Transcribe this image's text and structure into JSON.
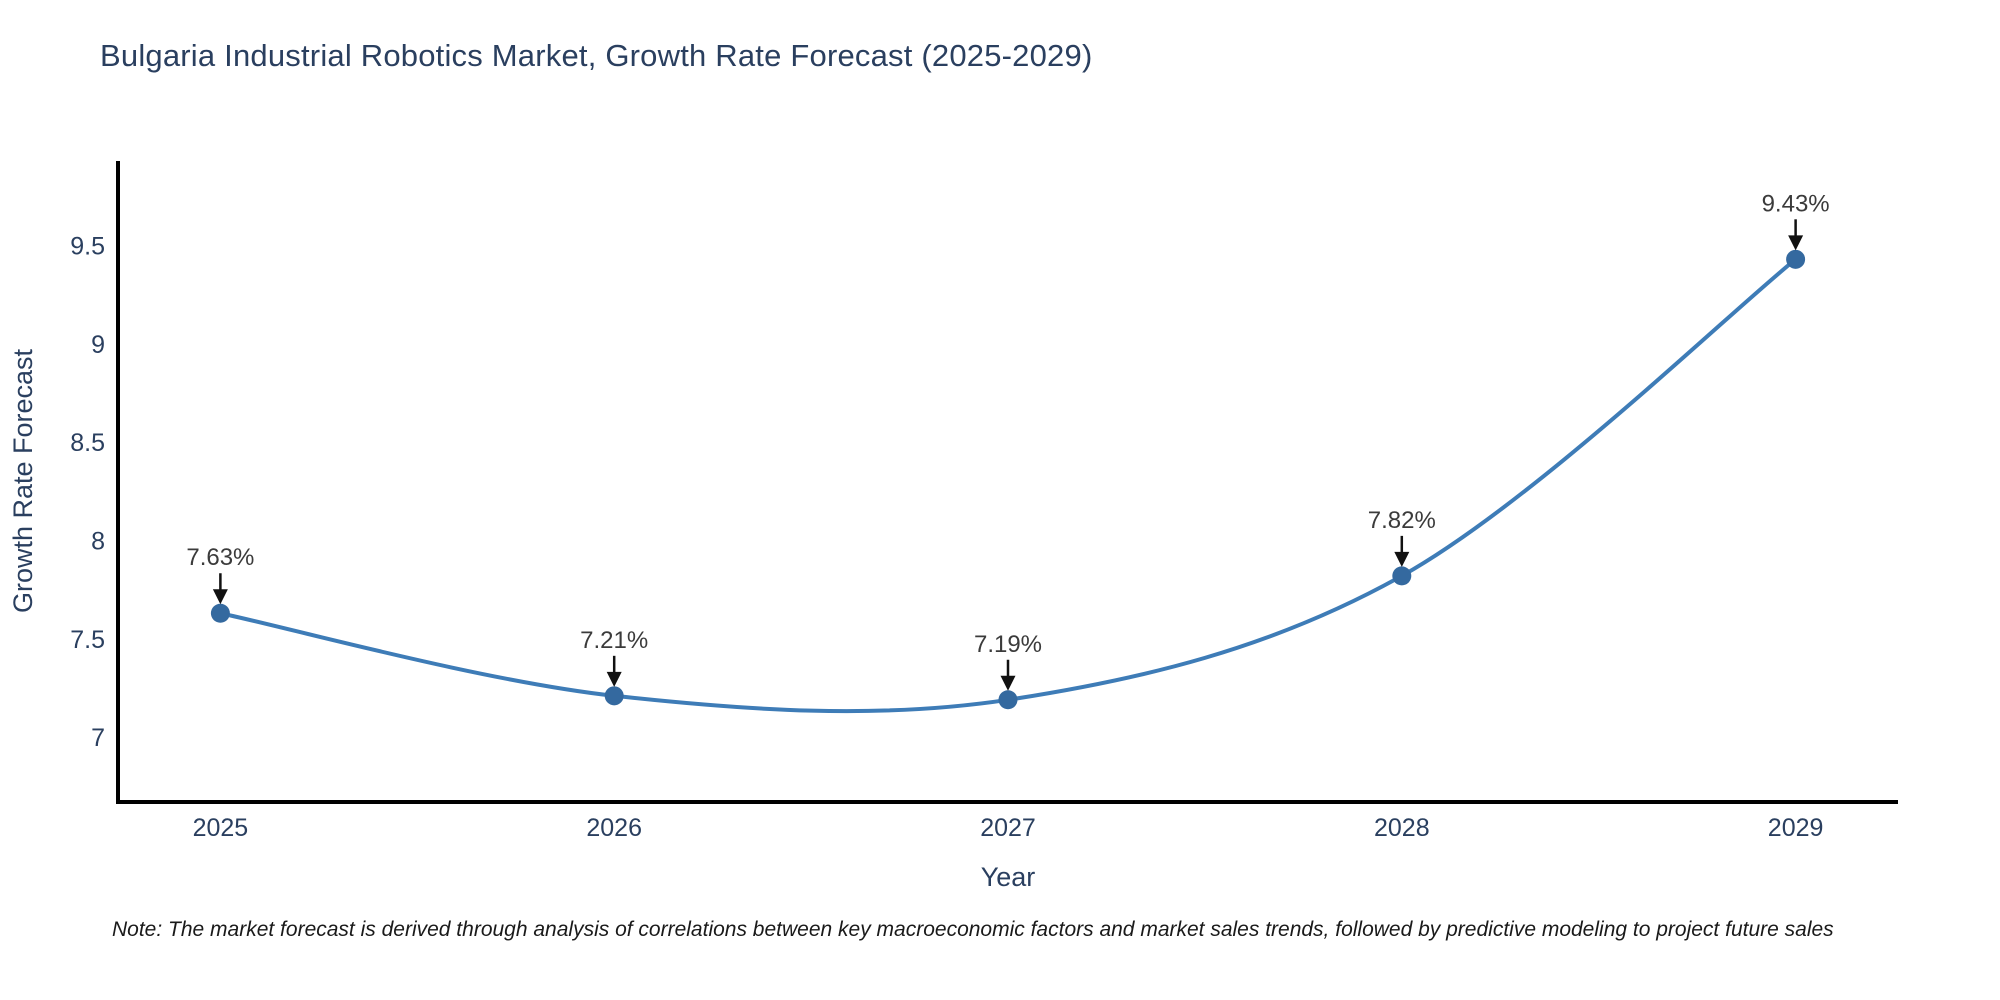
{
  "header": {
    "title": "Bulgaria Industrial Robotics Market, Growth Rate Forecast (2025-2029)"
  },
  "footnote": {
    "text": "Note: The market forecast is derived through analysis of correlations between key macroeconomic factors and market sales trends, followed by predictive modeling to project future sales"
  },
  "chart_data": {
    "type": "line",
    "title": "Bulgaria Industrial Robotics Market, Growth Rate Forecast (2025-2029)",
    "xlabel": "Year",
    "ylabel": "Growth Rate Forecast",
    "categories": [
      "2025",
      "2026",
      "2027",
      "2028",
      "2029"
    ],
    "x": [
      2025,
      2026,
      2027,
      2028,
      2029
    ],
    "values": [
      7.63,
      7.21,
      7.19,
      7.82,
      9.43
    ],
    "point_labels": [
      "7.63%",
      "7.21%",
      "7.19%",
      "7.82%",
      "9.43%"
    ],
    "y_ticks": [
      7,
      7.5,
      8,
      8.5,
      9,
      9.5
    ],
    "y_tick_labels": [
      "7",
      "7.5",
      "8",
      "8.5",
      "9",
      "9.5"
    ],
    "xlim": [
      2024.74,
      2029.26
    ],
    "ylim": [
      6.67,
      9.93
    ],
    "line_shape": "spline",
    "grid": false,
    "legend": "none",
    "colors": {
      "line": "#3e7cb7",
      "marker": "#34699f",
      "axis": "#000000",
      "tick_label": "#2a3f5f",
      "annotation_text": "#3b3b3b",
      "annotation_arrow": "#111111",
      "title": "#2a3f5f"
    }
  }
}
